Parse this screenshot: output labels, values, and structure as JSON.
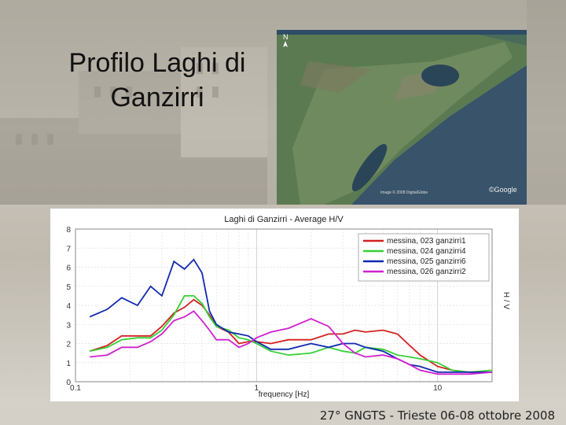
{
  "slide": {
    "title_line1": "Profilo Laghi di",
    "title_line2": "Ganzirri",
    "footer": "27° GNGTS - Trieste 06-08 ottobre 2008"
  },
  "satellite": {
    "north_label": "N",
    "watermark": "©Google",
    "credit_text": "Image © 2008 DigitalGlobe"
  },
  "chart_data": {
    "type": "line",
    "title": "Laghi di Ganzirri - Average H/V",
    "xlabel": "frequency [Hz]",
    "ylabel": "H / V",
    "xscale": "log",
    "xlim": [
      0.1,
      20
    ],
    "ylim": [
      0,
      8
    ],
    "x_ticks": [
      {
        "v": 0.1,
        "label": "0.1"
      },
      {
        "v": 1,
        "label": "1"
      },
      {
        "v": 10,
        "label": "10"
      }
    ],
    "y_ticks": [
      0,
      1,
      2,
      3,
      4,
      5,
      6,
      7,
      8
    ],
    "grid": true,
    "legend": "top-right",
    "x": [
      0.12,
      0.15,
      0.18,
      0.22,
      0.26,
      0.3,
      0.35,
      0.4,
      0.45,
      0.5,
      0.55,
      0.6,
      0.7,
      0.8,
      0.9,
      1.0,
      1.2,
      1.5,
      2.0,
      2.5,
      3.0,
      3.5,
      4.0,
      5.0,
      6.0,
      7.0,
      8.0,
      10.0,
      12.0,
      15.0,
      20.0
    ],
    "series": [
      {
        "name": "messina, 023 ganzirri1",
        "color": "#d42020",
        "values": [
          1.6,
          1.9,
          2.4,
          2.4,
          2.4,
          2.9,
          3.6,
          3.9,
          4.3,
          4.0,
          3.5,
          2.9,
          2.6,
          2.0,
          2.1,
          2.1,
          2.0,
          2.2,
          2.2,
          2.5,
          2.5,
          2.7,
          2.6,
          2.7,
          2.5,
          1.9,
          1.4,
          0.8,
          0.6,
          0.5,
          0.5
        ]
      },
      {
        "name": "messina, 024 ganzirri4",
        "color": "#34d034",
        "values": [
          1.6,
          1.8,
          2.2,
          2.3,
          2.3,
          2.7,
          3.5,
          4.5,
          4.5,
          4.1,
          3.4,
          2.9,
          2.7,
          2.3,
          2.2,
          2.0,
          1.6,
          1.4,
          1.5,
          1.8,
          1.6,
          1.5,
          1.8,
          1.7,
          1.4,
          1.3,
          1.2,
          1.0,
          0.6,
          0.5,
          0.6
        ]
      },
      {
        "name": "messina, 025 ganzirri6",
        "color": "#1028b0",
        "values": [
          3.4,
          3.8,
          4.4,
          4.0,
          5.0,
          4.5,
          6.3,
          5.9,
          6.4,
          5.7,
          3.7,
          3.0,
          2.6,
          2.5,
          2.4,
          2.1,
          1.7,
          1.7,
          2.0,
          1.8,
          2.0,
          2.0,
          1.8,
          1.6,
          1.2,
          0.9,
          0.8,
          0.5,
          0.5,
          0.5,
          0.5
        ]
      },
      {
        "name": "messina, 026 ganzirri2",
        "color": "#d020d0",
        "values": [
          1.3,
          1.4,
          1.8,
          1.8,
          2.1,
          2.5,
          3.2,
          3.4,
          3.7,
          3.2,
          2.7,
          2.2,
          2.2,
          1.8,
          2.0,
          2.3,
          2.6,
          2.8,
          3.3,
          2.9,
          2.0,
          1.5,
          1.3,
          1.4,
          1.2,
          0.9,
          0.6,
          0.4,
          0.4,
          0.4,
          0.5
        ]
      }
    ]
  }
}
